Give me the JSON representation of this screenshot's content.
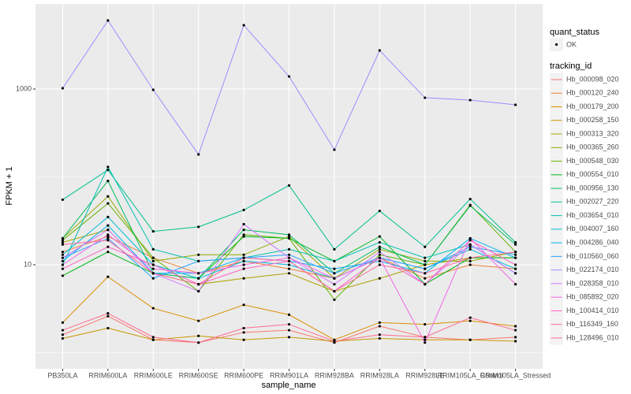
{
  "chart_data": {
    "type": "line",
    "xlabel": "sample_name",
    "ylabel": "FPKM + 1",
    "categories": [
      "PB350LA",
      "RRIM600LA",
      "RRIM600LE",
      "RRIM600SE",
      "RRIM600PE",
      "RRIM901LA",
      "RRIM928BA",
      "RRIM928LA",
      "RRIM928LE",
      "RRIM105LA_Control",
      "RRIM105LA_Stressed"
    ],
    "log_y": true,
    "ylim": [
      0.655,
      9300
    ],
    "yticks": [
      10,
      1000
    ],
    "y_minor_grid": [
      1,
      100
    ],
    "grid": true,
    "shape_legend_title": "quant_status",
    "point_label": "OK",
    "point_color": "#000000",
    "color_legend_title": "tracking_id",
    "legend": "right",
    "series": [
      {
        "name": "Hb_000098_020",
        "color": "#F8766D",
        "values": [
          1.6,
          2.6,
          1.4,
          1.3,
          1.7,
          1.8,
          1.3,
          2.0,
          1.5,
          1.4,
          1.5
        ]
      },
      {
        "name": "Hb_000120_240",
        "color": "#EC8239",
        "values": [
          14,
          21,
          12,
          8,
          11,
          9,
          7,
          12,
          7,
          10,
          9
        ]
      },
      {
        "name": "Hb_000179_200",
        "color": "#DB8E00",
        "values": [
          2.2,
          7.3,
          3.2,
          2.3,
          3.5,
          2.7,
          1.4,
          2.2,
          2.1,
          2.3,
          2.0
        ]
      },
      {
        "name": "Hb_000258_150",
        "color": "#C79800",
        "values": [
          1.45,
          1.9,
          1.4,
          1.55,
          1.4,
          1.5,
          1.35,
          1.45,
          1.4,
          1.4,
          1.35
        ]
      },
      {
        "name": "Hb_000313_320",
        "color": "#AEA200",
        "values": [
          18,
          25,
          8,
          6,
          7,
          8,
          5,
          7,
          10,
          12,
          12
        ]
      },
      {
        "name": "Hb_000365_260",
        "color": "#8FAA00",
        "values": [
          20,
          60,
          11,
          13,
          13,
          21,
          7,
          15,
          11,
          11,
          14
        ]
      },
      {
        "name": "Hb_000548_030",
        "color": "#64B200",
        "values": [
          19,
          50,
          12,
          5,
          22,
          20,
          4,
          13,
          10,
          48,
          14
        ]
      },
      {
        "name": "Hb_000554_010",
        "color": "#00B81B",
        "values": [
          7.5,
          14,
          8,
          7,
          21,
          20,
          11,
          21,
          6,
          12,
          12
        ]
      },
      {
        "name": "Hb_000956_130",
        "color": "#00BD5C",
        "values": [
          20,
          90,
          8,
          7,
          25,
          22,
          8,
          16,
          10,
          47,
          17
        ]
      },
      {
        "name": "Hb_002027_220",
        "color": "#00C08D",
        "values": [
          55,
          120,
          24,
          27,
          42,
          80,
          15,
          41,
          16,
          56,
          18
        ]
      },
      {
        "name": "Hb_003654_010",
        "color": "#00C1B2",
        "values": [
          10,
          130,
          15,
          11,
          12,
          15,
          11,
          18,
          12,
          17,
          8
        ]
      },
      {
        "name": "Hb_004007_160",
        "color": "#00BCD6",
        "values": [
          13,
          35,
          10,
          7,
          11,
          10,
          7,
          12,
          9,
          15,
          9
        ]
      },
      {
        "name": "Hb_004286_040",
        "color": "#00B3F2",
        "values": [
          11,
          28,
          8,
          8,
          12,
          11,
          9,
          11,
          8,
          20,
          12
        ]
      },
      {
        "name": "Hb_010560_060",
        "color": "#29A3FF",
        "values": [
          12,
          20,
          7,
          11,
          12,
          13,
          8,
          12,
          9,
          16,
          13
        ]
      },
      {
        "name": "Hb_022174_010",
        "color": "#9C8DFF",
        "values": [
          1020,
          6030,
          980,
          180,
          5330,
          1390,
          204,
          2750,
          796,
          748,
          662
        ]
      },
      {
        "name": "Hb_028358_010",
        "color": "#D277FF",
        "values": [
          12,
          25,
          8,
          5,
          29,
          12,
          6,
          14,
          6,
          17,
          8
        ]
      },
      {
        "name": "Hb_085892_020",
        "color": "#F166E8",
        "values": [
          10,
          22,
          9,
          8,
          10,
          12,
          7,
          12,
          1.3,
          20,
          6
        ]
      },
      {
        "name": "Hb_100414_010",
        "color": "#FF61C7",
        "values": [
          9,
          16,
          10,
          6,
          9,
          11,
          5,
          12,
          6,
          19,
          10
        ]
      },
      {
        "name": "Hb_116349_160",
        "color": "#FF689E",
        "values": [
          17,
          19,
          8,
          6,
          12,
          11,
          5,
          10,
          8,
          12,
          14
        ]
      },
      {
        "name": "Hb_128496_010",
        "color": "#FF6C91",
        "values": [
          1.8,
          2.8,
          1.5,
          1.3,
          1.9,
          2.1,
          1.35,
          1.6,
          1.5,
          2.5,
          1.8
        ]
      }
    ]
  }
}
